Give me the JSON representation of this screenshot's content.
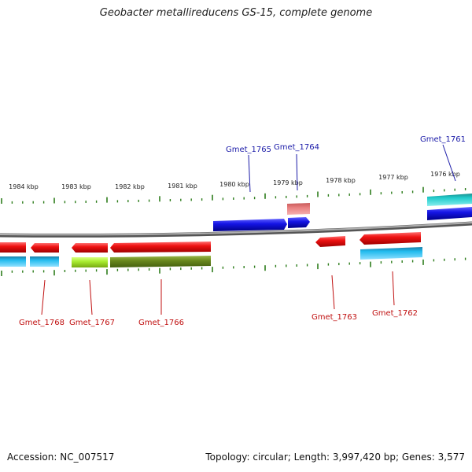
{
  "title": "Geobacter metallireducens GS-15, complete genome",
  "accession": "Accession: NC_007517",
  "stats": "Topology: circular; Length: 3,997,420 bp; Genes: 3,577",
  "colors": {
    "backbone": "#888888",
    "tick": "#2e7d1c",
    "label_forward": "#1a1aa8",
    "label_reverse": "#c01010",
    "red": "#ee1111",
    "blue": "#1515e6",
    "cyan": "#22bbee",
    "teal": "#22cccc",
    "lime": "#aaee33",
    "olive": "#6b8a1e",
    "pink": "#e88080"
  },
  "scale": {
    "labels": [
      "1984 kbp",
      "1983 kbp",
      "1982 kbp",
      "1981 kbp",
      "1980 kbp",
      "1979 kbp",
      "1978 kbp",
      "1977 kbp",
      "1976 kbp"
    ]
  },
  "genes": [
    {
      "label": "Gmet_1765",
      "strand": "forward"
    },
    {
      "label": "Gmet_1764",
      "strand": "forward"
    },
    {
      "label": "Gmet_1761",
      "strand": "forward"
    },
    {
      "label": "Gmet_1768",
      "strand": "reverse"
    },
    {
      "label": "Gmet_1767",
      "strand": "reverse"
    },
    {
      "label": "Gmet_1766",
      "strand": "reverse"
    },
    {
      "label": "Gmet_1763",
      "strand": "reverse"
    },
    {
      "label": "Gmet_1762",
      "strand": "reverse"
    }
  ]
}
